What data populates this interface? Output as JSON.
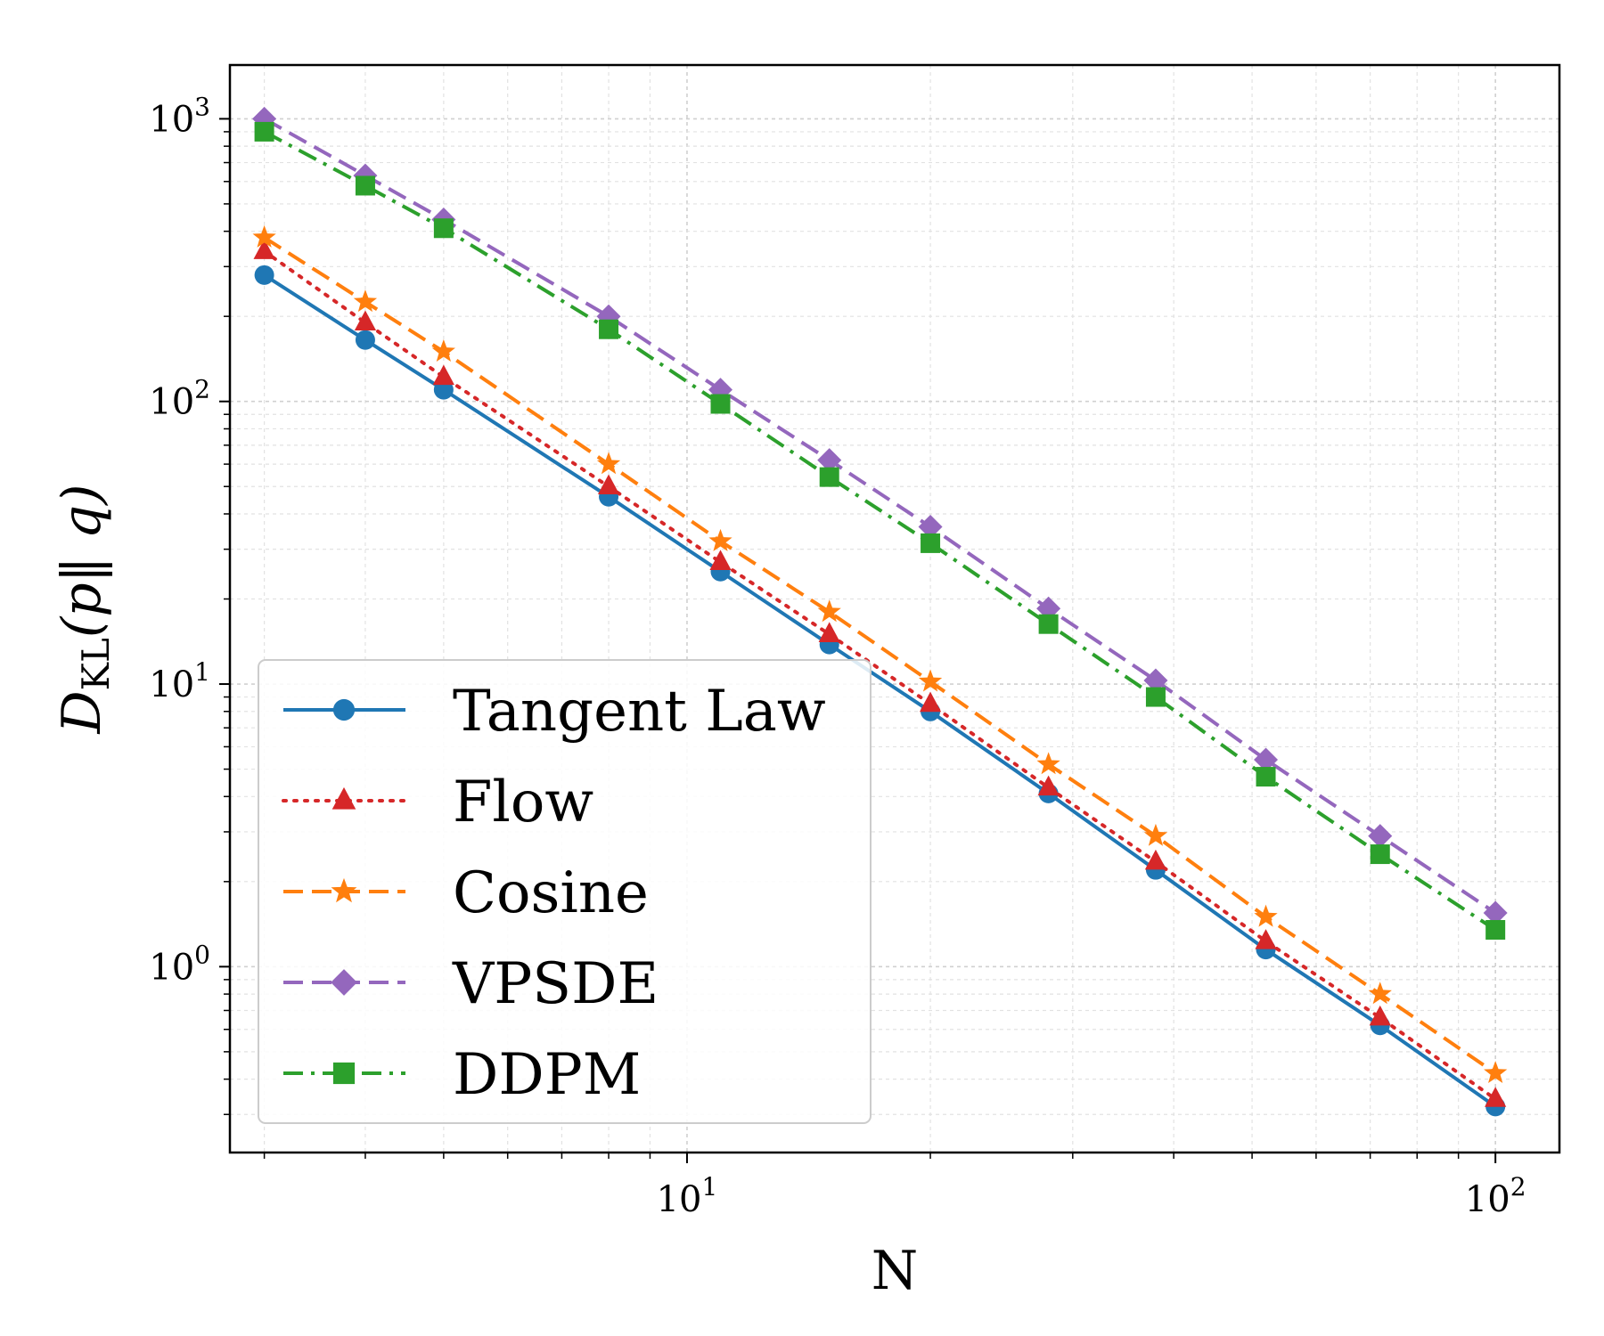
{
  "chart_data": {
    "type": "line",
    "title": "",
    "xlabel": "N",
    "ylabel": {
      "main": "D",
      "sub": "KL",
      "arg": "(p‖ q)"
    },
    "xscale": "log",
    "yscale": "log",
    "xlim": [
      2.72,
      120
    ],
    "ylim": [
      0.22,
      1550
    ],
    "grid": true,
    "legend_position": "lower-left",
    "x": [
      3,
      4,
      5,
      8,
      11,
      15,
      20,
      28,
      38,
      52,
      72,
      100
    ],
    "xticks": [
      {
        "value": 10,
        "base": "10",
        "exp": "1"
      },
      {
        "value": 100,
        "base": "10",
        "exp": "2"
      }
    ],
    "yticks": [
      {
        "value": 1,
        "base": "10",
        "exp": "0"
      },
      {
        "value": 10,
        "base": "10",
        "exp": "1"
      },
      {
        "value": 100,
        "base": "10",
        "exp": "2"
      },
      {
        "value": 1000,
        "base": "10",
        "exp": "3"
      }
    ],
    "series": [
      {
        "name": "Tangent Law",
        "color": "#1f77b4",
        "linestyle": "solid",
        "marker": "circle",
        "values": [
          280,
          165,
          110,
          46,
          25,
          13.8,
          8.0,
          4.1,
          2.2,
          1.15,
          0.62,
          0.32
        ]
      },
      {
        "name": "Flow",
        "color": "#d62728",
        "linestyle": "dotted",
        "marker": "triangle",
        "values": [
          340,
          190,
          122,
          50,
          27,
          15.0,
          8.5,
          4.3,
          2.35,
          1.23,
          0.66,
          0.34
        ]
      },
      {
        "name": "Cosine",
        "color": "#ff7f0e",
        "linestyle": "dashed",
        "marker": "star",
        "values": [
          380,
          225,
          150,
          60,
          32,
          18.0,
          10.2,
          5.2,
          2.9,
          1.5,
          0.8,
          0.42
        ]
      },
      {
        "name": "VPSDE",
        "color": "#9467bd",
        "linestyle": "dashed",
        "marker": "diamond",
        "values": [
          1000,
          630,
          440,
          200,
          110,
          62,
          36,
          18.5,
          10.3,
          5.4,
          2.9,
          1.55
        ]
      },
      {
        "name": "DDPM",
        "color": "#2ca02c",
        "linestyle": "dashdot",
        "marker": "square",
        "values": [
          900,
          580,
          410,
          180,
          98,
          54,
          31.5,
          16.3,
          9.0,
          4.7,
          2.5,
          1.35
        ]
      }
    ]
  }
}
